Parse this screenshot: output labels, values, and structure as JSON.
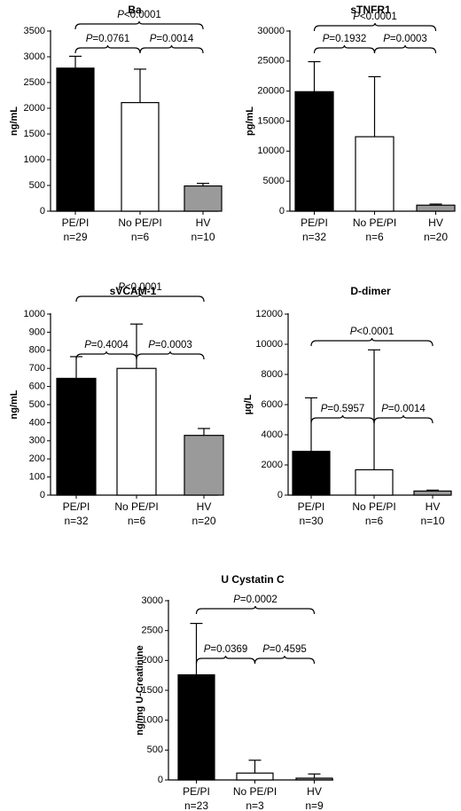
{
  "chart_data": [
    {
      "type": "bar",
      "title": "Ba",
      "ylabel": "ng/mL",
      "ylim": [
        0,
        3500
      ],
      "yticks": [
        "0",
        "500",
        "1000",
        "1500",
        "2000",
        "2500",
        "3000",
        "3500"
      ],
      "categories": [
        "PE/PI",
        "No PE/PI",
        "HV"
      ],
      "n_labels": [
        "n=29",
        "n=6",
        "n=10"
      ],
      "values": [
        2780,
        2110,
        490
      ],
      "errors": [
        230,
        650,
        50
      ],
      "bar_colors": [
        "#000000",
        "#ffffff",
        "#9a9a9a"
      ],
      "comparisons": [
        {
          "from": 0,
          "to": 1,
          "p_prefix": "P",
          "p_value": "=0.0761"
        },
        {
          "from": 1,
          "to": 2,
          "p_prefix": "P",
          "p_value": "=0.0014"
        },
        {
          "from": 0,
          "to": 2,
          "p_prefix": "P",
          "p_value": "<0.0001"
        }
      ]
    },
    {
      "type": "bar",
      "title": "sTNFR1",
      "ylabel": "pg/mL",
      "ylim": [
        0,
        30000
      ],
      "yticks": [
        "0",
        "5000",
        "10000",
        "15000",
        "20000",
        "25000",
        "30000"
      ],
      "categories": [
        "PE/PI",
        "No PE/PI",
        "HV"
      ],
      "n_labels": [
        "n=32",
        "n=6",
        "n=20"
      ],
      "values": [
        19900,
        12400,
        1000
      ],
      "errors": [
        5000,
        10000,
        180
      ],
      "bar_colors": [
        "#000000",
        "#ffffff",
        "#9a9a9a"
      ],
      "comparisons": [
        {
          "from": 0,
          "to": 1,
          "p_prefix": "P",
          "p_value": "=0.1932"
        },
        {
          "from": 1,
          "to": 2,
          "p_prefix": "P",
          "p_value": "=0.0003"
        },
        {
          "from": 0,
          "to": 2,
          "p_prefix": "P",
          "p_value": "<0.0001"
        }
      ]
    },
    {
      "type": "bar",
      "title": "sVCAM-1",
      "ylabel": "ng/mL",
      "ylim": [
        0,
        1000
      ],
      "yticks": [
        "0",
        "100",
        "200",
        "300",
        "400",
        "500",
        "600",
        "700",
        "800",
        "900",
        "1000"
      ],
      "categories": [
        "PE/PI",
        "No PE/PI",
        "HV"
      ],
      "n_labels": [
        "n=32",
        "n=6",
        "n=20"
      ],
      "values": [
        645,
        700,
        330
      ],
      "errors": [
        120,
        245,
        38
      ],
      "bar_colors": [
        "#000000",
        "#ffffff",
        "#9a9a9a"
      ],
      "comparisons": [
        {
          "from": 0,
          "to": 1,
          "p_prefix": "P",
          "p_value": "=0.4004"
        },
        {
          "from": 1,
          "to": 2,
          "p_prefix": "P",
          "p_value": "=0.0003"
        },
        {
          "from": 0,
          "to": 2,
          "p_prefix": "P",
          "p_value": "<0.0001"
        }
      ]
    },
    {
      "type": "bar",
      "title": "D-dimer",
      "ylabel": "µg/L",
      "ylim": [
        0,
        12000
      ],
      "yticks": [
        "0",
        "2000",
        "4000",
        "6000",
        "8000",
        "10000",
        "12000"
      ],
      "categories": [
        "PE/PI",
        "No PE/PI",
        "HV"
      ],
      "n_labels": [
        "n=30",
        "n=6",
        "n=10"
      ],
      "values": [
        2900,
        1680,
        270
      ],
      "errors": [
        3550,
        7950,
        60
      ],
      "bar_colors": [
        "#000000",
        "#ffffff",
        "#9a9a9a"
      ],
      "comparisons": [
        {
          "from": 0,
          "to": 1,
          "p_prefix": "P",
          "p_value": "=0.5957"
        },
        {
          "from": 1,
          "to": 2,
          "p_prefix": "P",
          "p_value": "=0.0014"
        },
        {
          "from": 0,
          "to": 2,
          "p_prefix": "P",
          "p_value": "<0.0001"
        }
      ]
    },
    {
      "type": "bar",
      "title": "U Cystatin C",
      "ylabel": "ng/mg U-Creatinine",
      "ylim": [
        0,
        3000
      ],
      "yticks": [
        "0",
        "500",
        "1000",
        "1500",
        "2000",
        "2500",
        "3000"
      ],
      "categories": [
        "PE/PI",
        "No PE/PI",
        "HV"
      ],
      "n_labels": [
        "n=23",
        "n=3",
        "n=9"
      ],
      "values": [
        1760,
        115,
        30
      ],
      "errors": [
        860,
        215,
        70
      ],
      "bar_colors": [
        "#000000",
        "#ffffff",
        "#9a9a9a"
      ],
      "comparisons": [
        {
          "from": 0,
          "to": 1,
          "p_prefix": "P",
          "p_value": "=0.0369"
        },
        {
          "from": 1,
          "to": 2,
          "p_prefix": "P",
          "p_value": "=0.4595"
        },
        {
          "from": 0,
          "to": 2,
          "p_prefix": "P",
          "p_value": "=0.0002"
        }
      ]
    }
  ]
}
